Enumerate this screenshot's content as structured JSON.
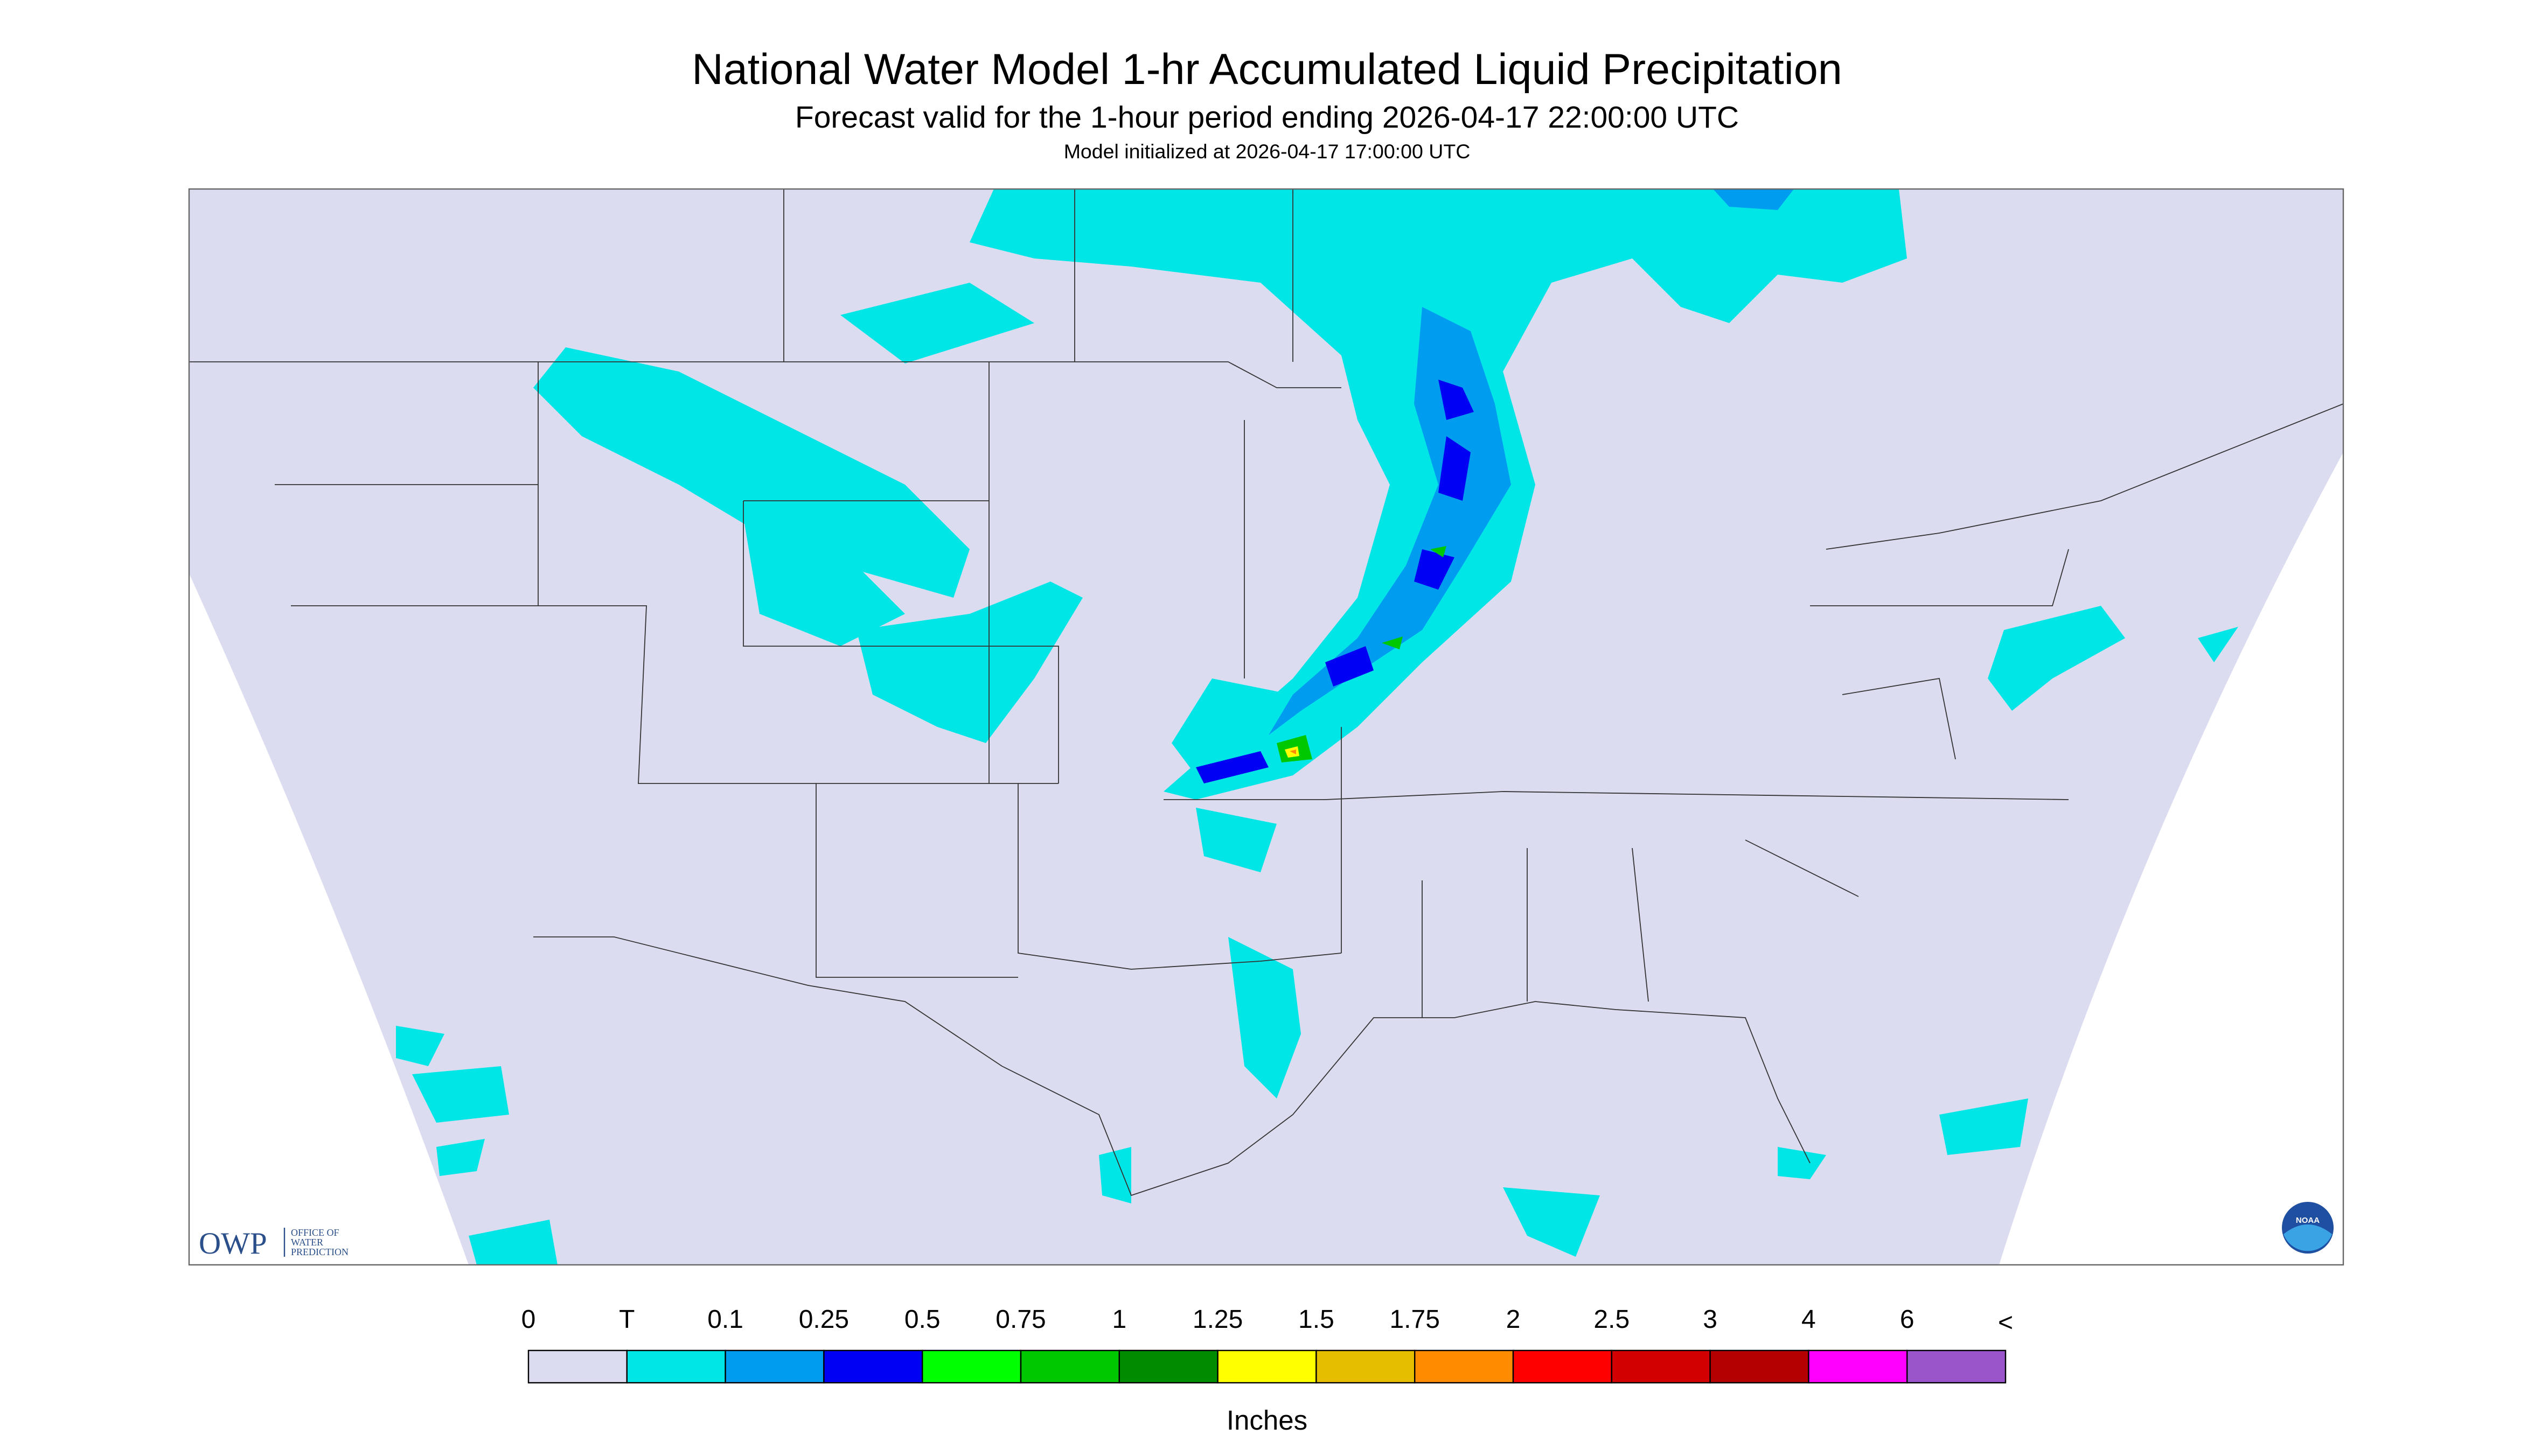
{
  "header": {
    "title": "National Water Model 1-hr Accumulated Liquid Precipitation",
    "subtitle": "Forecast valid for the 1-hour period ending 2026-04-17 22:00:00 UTC",
    "note": "Model initialized at 2026-04-17 17:00:00 UTC"
  },
  "logos": {
    "owp": "OWP",
    "owp_line1": "OFFICE OF",
    "owp_line2": "WATER",
    "owp_line3": "PREDICTION",
    "noaa": "NOAA"
  },
  "legend": {
    "unit": "Inches",
    "end_label": "<",
    "bins": [
      {
        "label": "0",
        "color": "#dcdcf0"
      },
      {
        "label": "T",
        "color": "#00e6e6"
      },
      {
        "label": "0.1",
        "color": "#009cf0"
      },
      {
        "label": "0.25",
        "color": "#0000f5"
      },
      {
        "label": "0.5",
        "color": "#00ff00"
      },
      {
        "label": "0.75",
        "color": "#00c800"
      },
      {
        "label": "1",
        "color": "#008c00"
      },
      {
        "label": "1.25",
        "color": "#ffff00"
      },
      {
        "label": "1.5",
        "color": "#e6be00"
      },
      {
        "label": "1.75",
        "color": "#ff8c00"
      },
      {
        "label": "2",
        "color": "#ff0000"
      },
      {
        "label": "2.5",
        "color": "#d20000"
      },
      {
        "label": "3",
        "color": "#b40000"
      },
      {
        "label": "4",
        "color": "#ff00ff"
      },
      {
        "label": "6",
        "color": "#9955c9"
      }
    ]
  }
}
